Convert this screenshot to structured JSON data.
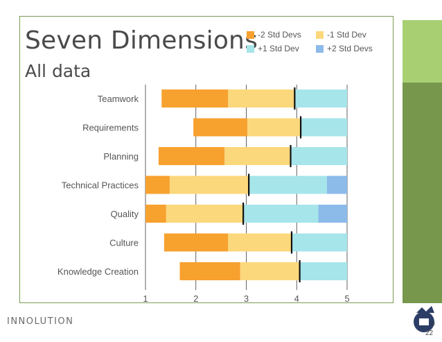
{
  "slide": {
    "title": "Seven Dimensions",
    "subtitle": "All data",
    "page_number": "22",
    "brand": "INNOLUTION",
    "registered_mark": "®"
  },
  "colors": {
    "minus2": "#f7a12f",
    "minus1": "#fcd87c",
    "plus1": "#a6e5ea",
    "plus2": "#8cbbea",
    "green_light": "#a8cf72",
    "green_dark": "#76974c"
  },
  "legend": [
    {
      "label": "-2 Std Devs",
      "color": "#f7a12f"
    },
    {
      "label": "-1 Std Dev",
      "color": "#fcd87c"
    },
    {
      "label": "+1 Std Dev",
      "color": "#a6e5ea"
    },
    {
      "label": "+2 Std Devs",
      "color": "#8cbbea"
    }
  ],
  "chart_data": {
    "type": "bar",
    "orientation": "horizontal-stacked-range",
    "title": "Seven Dimensions",
    "subtitle": "All data",
    "xlim": [
      1,
      5
    ],
    "xticks": [
      "1",
      "2",
      "3",
      "4",
      "5"
    ],
    "grid": true,
    "legend_position": "top-right",
    "categories": [
      "Teamwork",
      "Requirements",
      "Planning",
      "Technical Practices",
      "Quality",
      "Culture",
      "Knowledge Creation"
    ],
    "rows": [
      {
        "label": "Teamwork",
        "minus2": 1.32,
        "minus1": 2.64,
        "mean": 3.96,
        "plus1": 5.0,
        "plus2": 5.0
      },
      {
        "label": "Requirements",
        "minus2": 1.95,
        "minus1": 3.02,
        "mean": 4.08,
        "plus1": 5.0,
        "plus2": 5.0
      },
      {
        "label": "Planning",
        "minus2": 1.26,
        "minus1": 2.57,
        "mean": 3.88,
        "plus1": 5.0,
        "plus2": 5.0
      },
      {
        "label": "Technical Practices",
        "minus2": 1.0,
        "minus1": 1.48,
        "mean": 3.05,
        "plus1": 4.6,
        "plus2": 5.0
      },
      {
        "label": "Quality",
        "minus2": 1.0,
        "minus1": 1.41,
        "mean": 2.94,
        "plus1": 4.43,
        "plus2": 5.0
      },
      {
        "label": "Culture",
        "minus2": 1.37,
        "minus1": 2.64,
        "mean": 3.9,
        "plus1": 5.0,
        "plus2": 5.0
      },
      {
        "label": "Knowledge Creation",
        "minus2": 1.68,
        "minus1": 2.88,
        "mean": 4.06,
        "plus1": 5.0,
        "plus2": 5.0
      }
    ]
  }
}
